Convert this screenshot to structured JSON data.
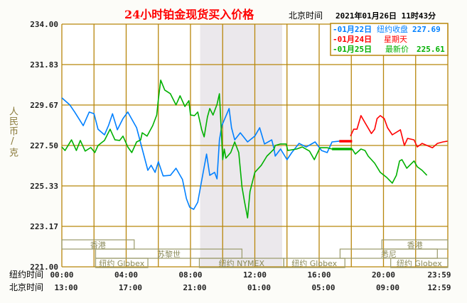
{
  "header": {
    "title": "24小时铂金现货买入价格",
    "beijing_label": "北京时间",
    "datetime": "2021年01月26日 11时43分"
  },
  "chart_data": {
    "type": "line",
    "title": "24小时铂金现货买入价格",
    "ylabel": "人民币/克",
    "ylim": [
      221.0,
      234.0
    ],
    "yticks": [
      "234.00",
      "231.83",
      "229.67",
      "227.50",
      "225.33",
      "223.17",
      "221.00"
    ],
    "xlim": [
      0,
      24
    ],
    "x_rows": [
      {
        "label": "纽约时间",
        "ticks": [
          "00:00",
          "04:00",
          "08:00",
          "12:00",
          "16:00",
          "20:00",
          "23:59"
        ]
      },
      {
        "label": "北京时间",
        "ticks": [
          "13:00",
          "17:00",
          "21:00",
          "01:00",
          "05:00",
          "09:00",
          "12:59"
        ]
      }
    ],
    "shaded_hours": [
      8.6,
      13.7
    ],
    "sessions": [
      {
        "label": "香港",
        "row": 0,
        "from": 0,
        "to": 4.5
      },
      {
        "label": "苏黎世",
        "row": 1,
        "from": 2.1,
        "to": 11.2
      },
      {
        "label": "纽约 Globex",
        "row": 2,
        "from": 2.1,
        "to": 5.35
      },
      {
        "label": "纽约 NYMEX",
        "row": 2,
        "from": 8.55,
        "to": 13.8
      },
      {
        "label": "纽约 Globex",
        "row": 2,
        "from": 13.8,
        "to": 17.6
      },
      {
        "label": "香港",
        "row": 0,
        "from": 19.9,
        "to": 24
      },
      {
        "label": "悉尼",
        "row": 1,
        "from": 17.3,
        "to": 23.35
      },
      {
        "label": "纽约 Globex",
        "row": 2,
        "from": 20.45,
        "to": 24
      }
    ],
    "legend": [
      {
        "date": "-01月22日",
        "desc": "纽约收盘",
        "value": "227.69",
        "color": "#0080ff"
      },
      {
        "date": "-01月24日",
        "desc": "星期天",
        "value": "",
        "color": "#ff0000"
      },
      {
        "date": "-01月25日",
        "desc": "最新价",
        "value": "225.61",
        "color": "#00b000"
      }
    ],
    "series": [
      {
        "name": "01月22日",
        "color": "#0080ff",
        "points": [
          [
            0,
            230.05
          ],
          [
            0.5,
            229.67
          ],
          [
            0.8,
            229.29
          ],
          [
            1.33,
            228.56
          ],
          [
            1.7,
            229.29
          ],
          [
            2.0,
            229.2
          ],
          [
            2.25,
            228.37
          ],
          [
            2.65,
            228.07
          ],
          [
            2.9,
            228.56
          ],
          [
            3.15,
            229.2
          ],
          [
            3.45,
            228.34
          ],
          [
            3.8,
            228.94
          ],
          [
            4.1,
            229.29
          ],
          [
            4.65,
            228.45
          ],
          [
            5.0,
            227.31
          ],
          [
            5.35,
            226.17
          ],
          [
            5.55,
            226.44
          ],
          [
            5.8,
            226.06
          ],
          [
            6.0,
            226.63
          ],
          [
            6.3,
            225.87
          ],
          [
            6.75,
            225.9
          ],
          [
            7.1,
            226.28
          ],
          [
            7.5,
            225.68
          ],
          [
            7.75,
            224.65
          ],
          [
            7.95,
            224.19
          ],
          [
            8.2,
            224.08
          ],
          [
            8.45,
            224.46
          ],
          [
            8.65,
            225.41
          ],
          [
            9.0,
            227.04
          ],
          [
            9.2,
            225.9
          ],
          [
            9.5,
            226.06
          ],
          [
            9.65,
            225.71
          ],
          [
            9.8,
            227.8
          ],
          [
            9.95,
            228.56
          ],
          [
            10.4,
            229.48
          ],
          [
            10.55,
            228.45
          ],
          [
            10.75,
            227.8
          ],
          [
            11.1,
            228.18
          ],
          [
            11.55,
            227.69
          ],
          [
            12.0,
            228.0
          ],
          [
            12.3,
            228.45
          ],
          [
            12.6,
            227.58
          ],
          [
            13.05,
            227.8
          ],
          [
            13.2,
            227.31
          ],
          [
            13.27,
            226.93
          ],
          [
            13.6,
            227.31
          ],
          [
            14.0,
            226.74
          ],
          [
            14.3,
            227.12
          ],
          [
            14.75,
            227.61
          ],
          [
            15.2,
            227.42
          ],
          [
            15.75,
            227.69
          ],
          [
            16.15,
            227.23
          ],
          [
            16.5,
            227.12
          ],
          [
            16.8,
            227.69
          ],
          [
            17.25,
            227.73
          ]
        ]
      },
      {
        "name": "01月24日",
        "color": "#ff0000",
        "flat": [
          17.25,
          18.05,
          227.73
        ],
        "points": [
          [
            17.95,
            228.0
          ],
          [
            18.15,
            228.37
          ],
          [
            18.35,
            228.37
          ],
          [
            18.6,
            229.1
          ],
          [
            18.85,
            228.72
          ],
          [
            19.25,
            228.14
          ],
          [
            19.45,
            228.37
          ],
          [
            19.6,
            228.94
          ],
          [
            19.8,
            229.1
          ],
          [
            20.05,
            228.94
          ],
          [
            20.25,
            228.45
          ],
          [
            20.55,
            228.07
          ],
          [
            21.05,
            228.34
          ],
          [
            21.3,
            227.5
          ],
          [
            21.5,
            227.88
          ],
          [
            21.9,
            227.8
          ],
          [
            22.1,
            227.42
          ],
          [
            22.4,
            227.61
          ],
          [
            23.05,
            227.38
          ],
          [
            23.35,
            227.61
          ],
          [
            23.7,
            227.69
          ],
          [
            23.98,
            227.73
          ]
        ]
      },
      {
        "name": "01月25日",
        "color": "#00b000",
        "flat": [
          16.8,
          18.05,
          227.31
        ],
        "points": [
          [
            0,
            227.42
          ],
          [
            0.2,
            227.23
          ],
          [
            0.6,
            227.8
          ],
          [
            0.9,
            227.23
          ],
          [
            1.15,
            227.77
          ],
          [
            1.45,
            227.2
          ],
          [
            1.8,
            227.39
          ],
          [
            2.05,
            227.12
          ],
          [
            2.25,
            227.5
          ],
          [
            2.65,
            227.77
          ],
          [
            3.0,
            228.37
          ],
          [
            3.3,
            227.8
          ],
          [
            3.6,
            227.77
          ],
          [
            3.8,
            228.0
          ],
          [
            4.1,
            227.42
          ],
          [
            4.35,
            227.12
          ],
          [
            4.65,
            227.69
          ],
          [
            4.9,
            227.8
          ],
          [
            5.0,
            228.18
          ],
          [
            5.3,
            228.0
          ],
          [
            5.65,
            228.56
          ],
          [
            5.9,
            229.13
          ],
          [
            6.0,
            229.97
          ],
          [
            6.15,
            231.0
          ],
          [
            6.4,
            230.47
          ],
          [
            6.75,
            230.27
          ],
          [
            7.1,
            229.67
          ],
          [
            7.35,
            230.16
          ],
          [
            7.65,
            229.59
          ],
          [
            7.9,
            229.9
          ],
          [
            8.0,
            229.13
          ],
          [
            8.25,
            229.1
          ],
          [
            8.45,
            229.29
          ],
          [
            8.7,
            228.34
          ],
          [
            8.85,
            227.96
          ],
          [
            9.05,
            229.02
          ],
          [
            9.2,
            229.48
          ],
          [
            9.4,
            229.13
          ],
          [
            9.65,
            229.7
          ],
          [
            9.8,
            230.27
          ],
          [
            9.95,
            227.69
          ],
          [
            10.0,
            226.74
          ],
          [
            10.1,
            227.31
          ],
          [
            10.2,
            226.82
          ],
          [
            10.5,
            227.12
          ],
          [
            10.75,
            227.69
          ],
          [
            11.0,
            227.12
          ],
          [
            11.2,
            225.29
          ],
          [
            11.35,
            224.53
          ],
          [
            11.55,
            223.62
          ],
          [
            11.7,
            225.03
          ],
          [
            12.0,
            226.06
          ],
          [
            12.4,
            226.44
          ],
          [
            12.75,
            226.93
          ],
          [
            13.2,
            227.31
          ],
          [
            13.27,
            227.5
          ],
          [
            13.6,
            227.58
          ],
          [
            13.95,
            227.58
          ],
          [
            14.05,
            227.23
          ],
          [
            14.6,
            227.31
          ],
          [
            14.95,
            227.42
          ],
          [
            15.4,
            227.2
          ],
          [
            15.7,
            226.74
          ],
          [
            16.05,
            227.38
          ],
          [
            16.5,
            227.38
          ],
          [
            16.8,
            227.31
          ]
        ],
        "points2": [
          [
            18.05,
            227.31
          ],
          [
            18.25,
            227.04
          ],
          [
            18.6,
            227.31
          ],
          [
            18.85,
            227.23
          ],
          [
            19.05,
            226.93
          ],
          [
            19.45,
            226.55
          ],
          [
            19.8,
            226.06
          ],
          [
            20.2,
            225.79
          ],
          [
            20.55,
            225.48
          ],
          [
            20.8,
            225.9
          ],
          [
            21.0,
            226.67
          ],
          [
            21.15,
            226.74
          ],
          [
            21.45,
            226.28
          ],
          [
            21.9,
            226.67
          ],
          [
            22.1,
            226.36
          ],
          [
            22.4,
            226.17
          ],
          [
            22.7,
            225.9
          ]
        ]
      }
    ]
  },
  "colors": {
    "grid": "#b8860b",
    "shade": "#ebe8ec",
    "session": "#9a9a6a"
  }
}
